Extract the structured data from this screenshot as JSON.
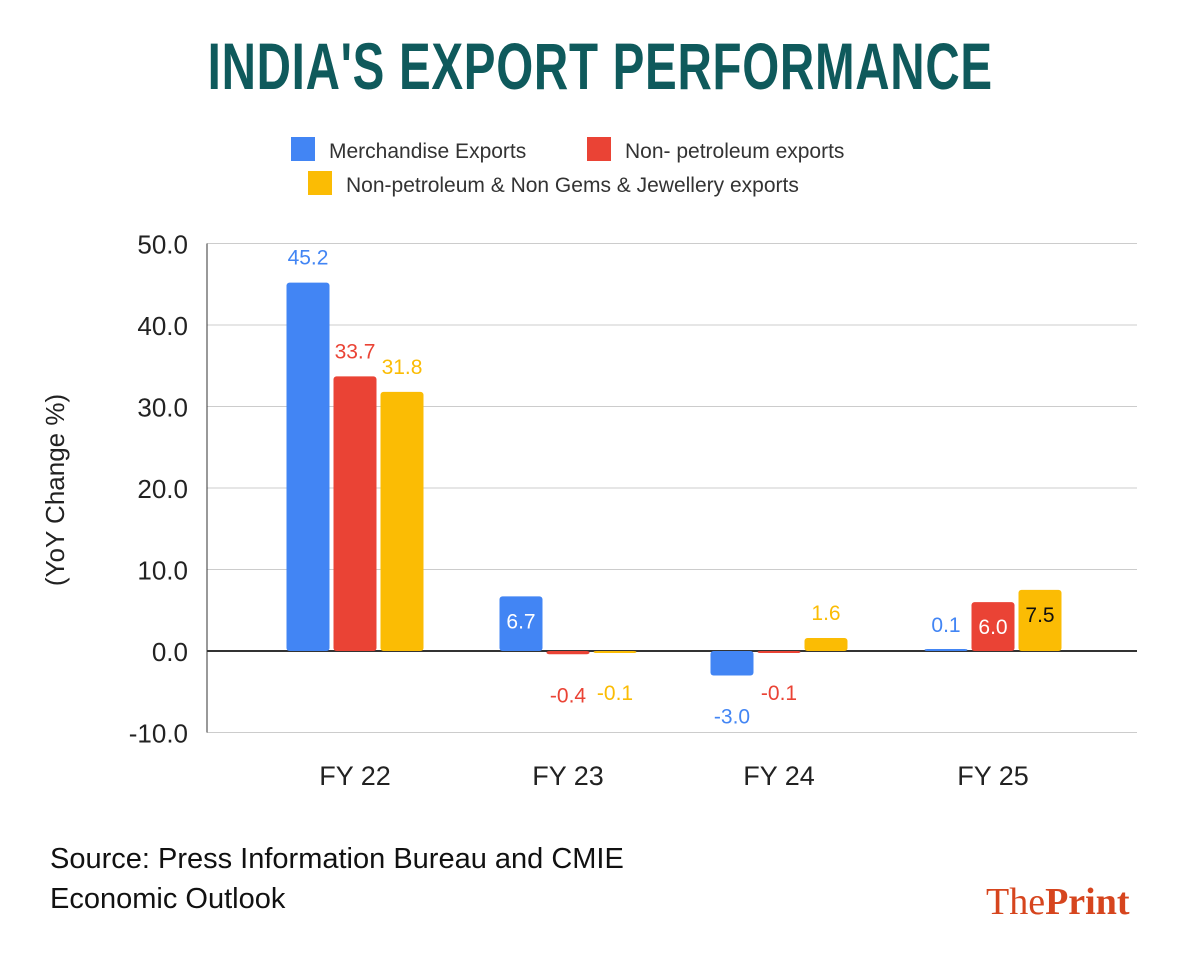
{
  "title": "INDIA'S EXPORT PERFORMANCE",
  "source_line1": "Source: Press Information Bureau and CMIE",
  "source_line2": "Economic Outlook",
  "logo": {
    "part1": "The",
    "part2": "Print"
  },
  "chart_data": {
    "type": "bar",
    "title": "INDIA'S EXPORT PERFORMANCE",
    "xlabel": "",
    "ylabel": "(YoY Change %)",
    "categories": [
      "FY 22",
      "FY 23",
      "FY 24",
      "FY 25"
    ],
    "ylim": [
      -10,
      50
    ],
    "yticks": [
      -10,
      0,
      10,
      20,
      30,
      40,
      50
    ],
    "ytick_labels": [
      "-10.0",
      "0.0",
      "10.0",
      "20.0",
      "30.0",
      "40.0",
      "50.0"
    ],
    "grid": true,
    "legend_position": "top",
    "series": [
      {
        "name": "Merchandise Exports",
        "color": "#4285f4",
        "values": [
          45.2,
          6.7,
          -3.0,
          0.1
        ],
        "labels": [
          "45.2",
          "6.7",
          "-3.0",
          "0.1"
        ]
      },
      {
        "name": "Non- petroleum exports",
        "color": "#ea4335",
        "values": [
          33.7,
          -0.4,
          -0.1,
          6.0
        ],
        "labels": [
          "33.7",
          "-0.4",
          "-0.1",
          "6.0"
        ]
      },
      {
        "name": "Non-petroleum & Non Gems & Jewellery exports",
        "color": "#fbbc04",
        "values": [
          31.8,
          -0.1,
          1.6,
          7.5
        ],
        "labels": [
          "31.8",
          "-0.1",
          "1.6",
          "7.5"
        ]
      }
    ]
  }
}
